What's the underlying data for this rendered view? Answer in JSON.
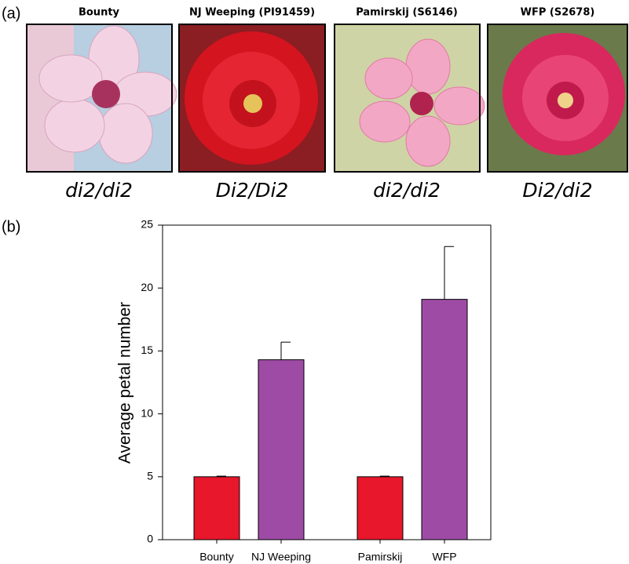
{
  "panel_a": {
    "label": "(a)",
    "photos": [
      {
        "title": "Bounty",
        "genotype": "di2/di2"
      },
      {
        "title": "NJ Weeping (PI91459)",
        "genotype": "Di2/Di2"
      },
      {
        "title": "Pamirskij (S6146)",
        "genotype": "di2/di2"
      },
      {
        "title": "WFP (S2678)",
        "genotype": "Di2/di2"
      }
    ]
  },
  "panel_b": {
    "label": "(b)",
    "chart_data": {
      "type": "bar",
      "y_label": "Average petal number",
      "categories": [
        "Bounty",
        "NJ Weeping",
        null,
        "Pamirskij",
        "WFP"
      ],
      "values": [
        5,
        14.3,
        null,
        5,
        19.1
      ],
      "errors": [
        0.05,
        1.4,
        null,
        0.05,
        4.2
      ],
      "colors": [
        "#e8172b",
        "#9e4ba5",
        null,
        "#e8172b",
        "#9e4ba5"
      ],
      "ylim": [
        0,
        25
      ],
      "yticks": [
        0,
        5,
        10,
        15,
        20,
        25
      ]
    }
  }
}
